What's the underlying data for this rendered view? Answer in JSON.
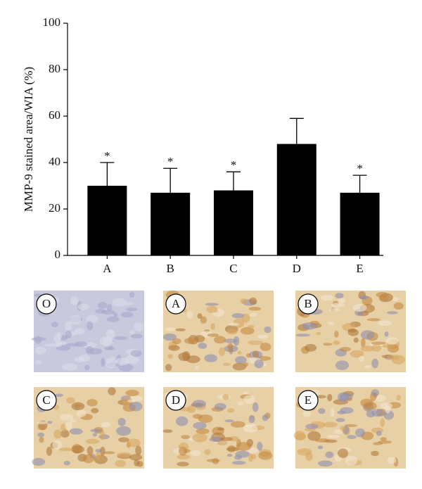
{
  "chart_data": {
    "type": "bar",
    "y_label": "MMP-9 stained area/WIA (%)",
    "categories": [
      "A",
      "B",
      "C",
      "D",
      "E"
    ],
    "values": [
      30,
      27,
      28,
      48,
      27
    ],
    "errors": [
      10,
      10.5,
      8,
      11,
      7.5
    ],
    "annotations": [
      "*",
      "*",
      "*",
      null,
      "*"
    ],
    "color": "#000000",
    "ylim": [
      0,
      100
    ],
    "yticks": [
      0,
      20,
      40,
      60,
      80,
      100
    ]
  },
  "panels": [
    {
      "label": "O"
    },
    {
      "label": "A"
    },
    {
      "label": "B"
    },
    {
      "label": "C"
    },
    {
      "label": "D"
    },
    {
      "label": "E"
    }
  ]
}
